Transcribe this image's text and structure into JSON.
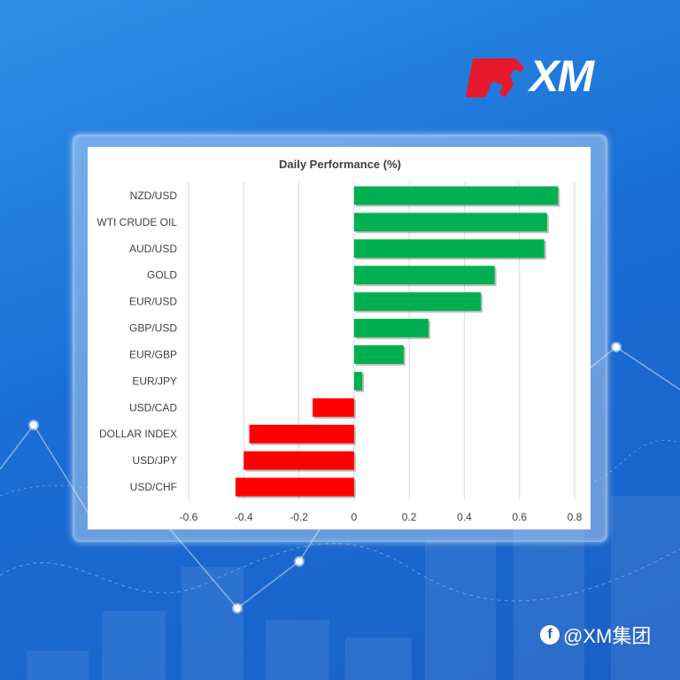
{
  "brand": {
    "logo_text": "XM",
    "logo_red": "#e8192c",
    "watermark": "@XM集团",
    "watermark_icon": "facebook-icon"
  },
  "colors": {
    "positive": "#00b050",
    "negative": "#ff0000",
    "grid": "#d9d9d9",
    "text": "#404040"
  },
  "chart_data": {
    "type": "bar",
    "orientation": "horizontal",
    "title": "Daily Performance (%)",
    "categories": [
      "NZD/USD",
      "WTI CRUDE OIL",
      "AUD/USD",
      "GOLD",
      "EUR/USD",
      "GBP/USD",
      "EUR/GBP",
      "EUR/JPY",
      "USD/CAD",
      "DOLLAR INDEX",
      "USD/JPY",
      "USD/CHF"
    ],
    "values": [
      0.74,
      0.7,
      0.69,
      0.51,
      0.46,
      0.27,
      0.18,
      0.03,
      -0.15,
      -0.38,
      -0.4,
      -0.43
    ],
    "xlim": [
      -0.6,
      0.8
    ],
    "xticks": [
      -0.6,
      -0.4,
      -0.2,
      0,
      0.2,
      0.4,
      0.6,
      0.8
    ],
    "xtick_labels": [
      "-0.6",
      "-0.4",
      "-0.2",
      "0",
      "0.2",
      "0.4",
      "0.6",
      "0.8"
    ],
    "grid": true,
    "legend": "none"
  }
}
